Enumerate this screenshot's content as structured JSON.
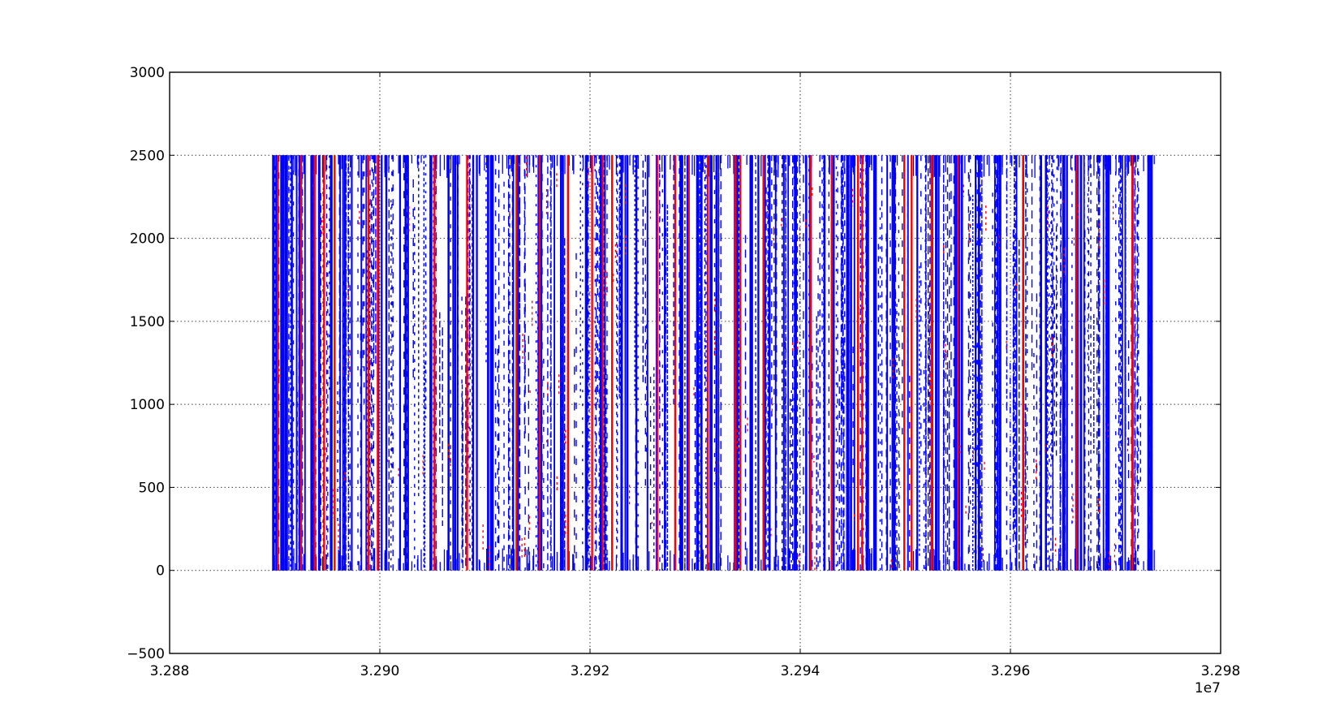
{
  "chart_data": {
    "type": "scatter",
    "title": "",
    "xlabel": "",
    "ylabel": "",
    "x_offset_label": "1e7",
    "xlim": [
      3.288,
      3.298
    ],
    "ylim": [
      -500,
      3000
    ],
    "xticks": [
      "3.288",
      "3.290",
      "3.292",
      "3.294",
      "3.296",
      "3.298"
    ],
    "xtick_values": [
      3.288,
      3.29,
      3.292,
      3.294,
      3.296,
      3.298
    ],
    "yticks": [
      "3000",
      "2500",
      "2000",
      "1500",
      "1000",
      "500",
      "0",
      "−500"
    ],
    "ytick_values": [
      3000,
      2500,
      2000,
      1500,
      1000,
      500,
      0,
      -500
    ],
    "grid": true,
    "legend": "none",
    "series": [
      {
        "color": "#0000ff",
        "marker": "vertical-dash",
        "y_range": [
          0,
          2500
        ],
        "x_range": [
          3.28897,
          3.29737
        ],
        "dense_x": [
          3.28897,
          3.28905,
          3.28912,
          3.28925,
          3.28938,
          3.28952,
          3.28968,
          3.28985,
          3.29002,
          3.29025,
          3.29048,
          3.29068,
          3.29088,
          3.29108,
          3.29128,
          3.2915,
          3.29172,
          3.29195,
          3.29212,
          3.2923,
          3.2925,
          3.29268,
          3.29288,
          3.29305,
          3.2932,
          3.29338,
          3.29355,
          3.29372,
          3.2939,
          3.29408,
          3.29428,
          3.29448,
          3.29468,
          3.29488,
          3.29508,
          3.29528,
          3.29548,
          3.29568,
          3.29588,
          3.29608,
          3.29628,
          3.29648,
          3.29668,
          3.2969,
          3.29712,
          3.2973,
          3.29737
        ]
      },
      {
        "color": "#ff0000",
        "marker": "vertical-dash",
        "y_range": [
          0,
          2500
        ],
        "x_range": [
          3.289,
          3.29717
        ],
        "line_x": [
          3.28903,
          3.28925,
          3.28938,
          3.28947,
          3.28957,
          3.28989,
          3.28998,
          3.29052,
          3.29083,
          3.2913,
          3.29152,
          3.29179,
          3.29202,
          3.29212,
          3.29221,
          3.29264,
          3.29281,
          3.29294,
          3.29312,
          3.29338,
          3.29343,
          3.29365,
          3.2941,
          3.2943,
          3.29455,
          3.29459,
          3.29499,
          3.29506,
          3.29525,
          3.2955,
          3.29612,
          3.29663,
          3.29716
        ]
      }
    ]
  }
}
